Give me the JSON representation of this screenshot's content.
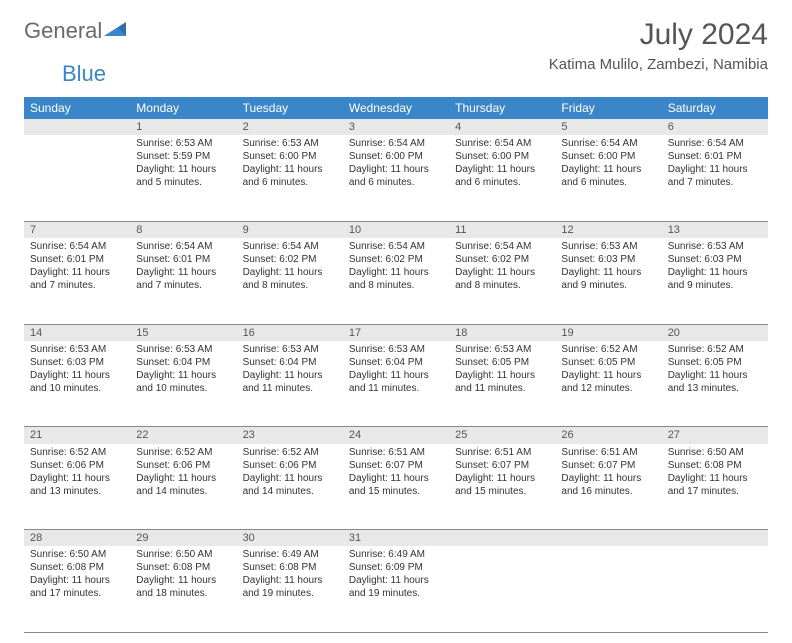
{
  "brand": {
    "part1": "General",
    "part2": "Blue"
  },
  "title": "July 2024",
  "subtitle": "Katima Mulilo, Zambezi, Namibia",
  "colors": {
    "header_bg": "#3a86c8",
    "header_fg": "#ffffff",
    "daynum_bg": "#e8e8e8",
    "text": "#333333",
    "brand_gray": "#6a6a6a",
    "brand_blue": "#3a86c8"
  },
  "weekdays": [
    "Sunday",
    "Monday",
    "Tuesday",
    "Wednesday",
    "Thursday",
    "Friday",
    "Saturday"
  ],
  "start_offset": 1,
  "days": [
    {
      "n": 1,
      "sunrise": "6:53 AM",
      "sunset": "5:59 PM",
      "daylight": "11 hours and 5 minutes."
    },
    {
      "n": 2,
      "sunrise": "6:53 AM",
      "sunset": "6:00 PM",
      "daylight": "11 hours and 6 minutes."
    },
    {
      "n": 3,
      "sunrise": "6:54 AM",
      "sunset": "6:00 PM",
      "daylight": "11 hours and 6 minutes."
    },
    {
      "n": 4,
      "sunrise": "6:54 AM",
      "sunset": "6:00 PM",
      "daylight": "11 hours and 6 minutes."
    },
    {
      "n": 5,
      "sunrise": "6:54 AM",
      "sunset": "6:00 PM",
      "daylight": "11 hours and 6 minutes."
    },
    {
      "n": 6,
      "sunrise": "6:54 AM",
      "sunset": "6:01 PM",
      "daylight": "11 hours and 7 minutes."
    },
    {
      "n": 7,
      "sunrise": "6:54 AM",
      "sunset": "6:01 PM",
      "daylight": "11 hours and 7 minutes."
    },
    {
      "n": 8,
      "sunrise": "6:54 AM",
      "sunset": "6:01 PM",
      "daylight": "11 hours and 7 minutes."
    },
    {
      "n": 9,
      "sunrise": "6:54 AM",
      "sunset": "6:02 PM",
      "daylight": "11 hours and 8 minutes."
    },
    {
      "n": 10,
      "sunrise": "6:54 AM",
      "sunset": "6:02 PM",
      "daylight": "11 hours and 8 minutes."
    },
    {
      "n": 11,
      "sunrise": "6:54 AM",
      "sunset": "6:02 PM",
      "daylight": "11 hours and 8 minutes."
    },
    {
      "n": 12,
      "sunrise": "6:53 AM",
      "sunset": "6:03 PM",
      "daylight": "11 hours and 9 minutes."
    },
    {
      "n": 13,
      "sunrise": "6:53 AM",
      "sunset": "6:03 PM",
      "daylight": "11 hours and 9 minutes."
    },
    {
      "n": 14,
      "sunrise": "6:53 AM",
      "sunset": "6:03 PM",
      "daylight": "11 hours and 10 minutes."
    },
    {
      "n": 15,
      "sunrise": "6:53 AM",
      "sunset": "6:04 PM",
      "daylight": "11 hours and 10 minutes."
    },
    {
      "n": 16,
      "sunrise": "6:53 AM",
      "sunset": "6:04 PM",
      "daylight": "11 hours and 11 minutes."
    },
    {
      "n": 17,
      "sunrise": "6:53 AM",
      "sunset": "6:04 PM",
      "daylight": "11 hours and 11 minutes."
    },
    {
      "n": 18,
      "sunrise": "6:53 AM",
      "sunset": "6:05 PM",
      "daylight": "11 hours and 11 minutes."
    },
    {
      "n": 19,
      "sunrise": "6:52 AM",
      "sunset": "6:05 PM",
      "daylight": "11 hours and 12 minutes."
    },
    {
      "n": 20,
      "sunrise": "6:52 AM",
      "sunset": "6:05 PM",
      "daylight": "11 hours and 13 minutes."
    },
    {
      "n": 21,
      "sunrise": "6:52 AM",
      "sunset": "6:06 PM",
      "daylight": "11 hours and 13 minutes."
    },
    {
      "n": 22,
      "sunrise": "6:52 AM",
      "sunset": "6:06 PM",
      "daylight": "11 hours and 14 minutes."
    },
    {
      "n": 23,
      "sunrise": "6:52 AM",
      "sunset": "6:06 PM",
      "daylight": "11 hours and 14 minutes."
    },
    {
      "n": 24,
      "sunrise": "6:51 AM",
      "sunset": "6:07 PM",
      "daylight": "11 hours and 15 minutes."
    },
    {
      "n": 25,
      "sunrise": "6:51 AM",
      "sunset": "6:07 PM",
      "daylight": "11 hours and 15 minutes."
    },
    {
      "n": 26,
      "sunrise": "6:51 AM",
      "sunset": "6:07 PM",
      "daylight": "11 hours and 16 minutes."
    },
    {
      "n": 27,
      "sunrise": "6:50 AM",
      "sunset": "6:08 PM",
      "daylight": "11 hours and 17 minutes."
    },
    {
      "n": 28,
      "sunrise": "6:50 AM",
      "sunset": "6:08 PM",
      "daylight": "11 hours and 17 minutes."
    },
    {
      "n": 29,
      "sunrise": "6:50 AM",
      "sunset": "6:08 PM",
      "daylight": "11 hours and 18 minutes."
    },
    {
      "n": 30,
      "sunrise": "6:49 AM",
      "sunset": "6:08 PM",
      "daylight": "11 hours and 19 minutes."
    },
    {
      "n": 31,
      "sunrise": "6:49 AM",
      "sunset": "6:09 PM",
      "daylight": "11 hours and 19 minutes."
    }
  ],
  "labels": {
    "sunrise": "Sunrise:",
    "sunset": "Sunset:",
    "daylight": "Daylight:"
  }
}
